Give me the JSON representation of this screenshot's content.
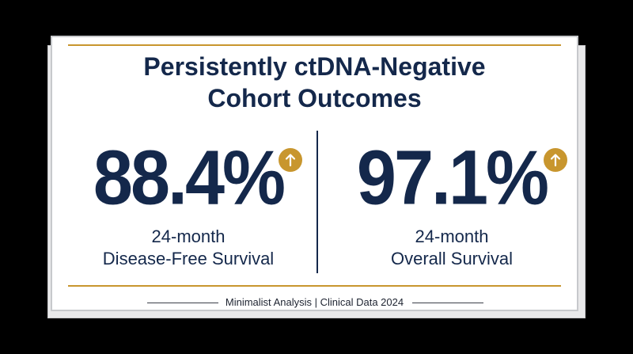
{
  "card": {
    "title_line1": "Persistently ctDNA-Negative",
    "title_line2": "Cohort Outcomes",
    "footer": "Minimalist Analysis | Clinical Data 2024"
  },
  "stats": [
    {
      "value": "88.4%",
      "label_line1": "24-month",
      "label_line2": "Disease-Free Survival",
      "icon": "arrow-up-icon"
    },
    {
      "value": "97.1%",
      "label_line1": "24-month",
      "label_line2": "Overall Survival",
      "icon": "arrow-up-icon"
    }
  ],
  "colors": {
    "navy": "#14284b",
    "gold": "#c8962e",
    "background": "#000000",
    "card": "#ffffff"
  }
}
